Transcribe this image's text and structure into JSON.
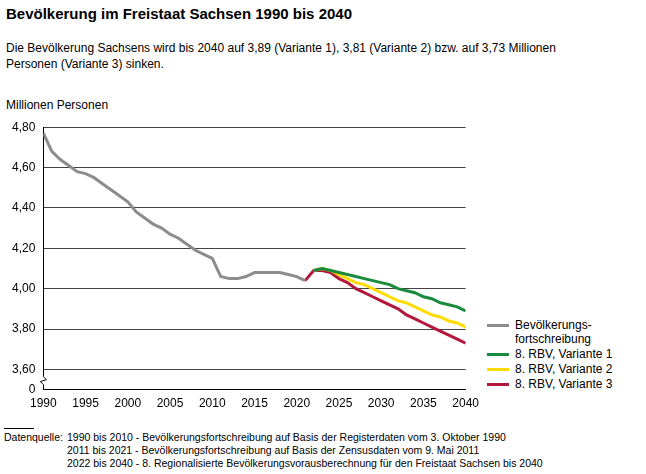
{
  "chart_data": {
    "type": "line",
    "title": "Bevölkerung im Freistaat Sachsen 1990 bis 2040",
    "subtitle": "Die Bevölkerung Sachsens wird bis 2040 auf 3,89 (Variante 1), 3,81 (Variante 2) bzw. auf  3,73 Millionen Personen (Variante 3) sinken.",
    "y_label": "Millionen Personen",
    "x": [
      1990,
      1991,
      1992,
      1993,
      1994,
      1995,
      1996,
      1997,
      1998,
      1999,
      2000,
      2001,
      2002,
      2003,
      2004,
      2005,
      2006,
      2007,
      2008,
      2009,
      2010,
      2011,
      2012,
      2013,
      2014,
      2015,
      2016,
      2017,
      2018,
      2019,
      2020,
      2021,
      2022,
      2023,
      2024,
      2025,
      2026,
      2027,
      2028,
      2029,
      2030,
      2031,
      2032,
      2033,
      2034,
      2035,
      2036,
      2037,
      2038,
      2039,
      2040
    ],
    "series": [
      {
        "name": "Bevölkerungs-fortschreibung",
        "color": "#8c8c8c",
        "values": [
          4.77,
          4.68,
          4.64,
          4.61,
          4.58,
          4.57,
          4.55,
          4.52,
          4.49,
          4.46,
          4.43,
          4.38,
          4.35,
          4.32,
          4.3,
          4.27,
          4.25,
          4.22,
          4.19,
          4.17,
          4.15,
          4.06,
          4.05,
          4.05,
          4.06,
          4.08,
          4.08,
          4.08,
          4.08,
          4.07,
          4.06,
          4.04,
          null,
          null,
          null,
          null,
          null,
          null,
          null,
          null,
          null,
          null,
          null,
          null,
          null,
          null,
          null,
          null,
          null,
          null,
          null
        ]
      },
      {
        "name": "8. RBV, Variante 1",
        "color": "#1a8a3c",
        "values": [
          null,
          null,
          null,
          null,
          null,
          null,
          null,
          null,
          null,
          null,
          null,
          null,
          null,
          null,
          null,
          null,
          null,
          null,
          null,
          null,
          null,
          null,
          null,
          null,
          null,
          null,
          null,
          null,
          null,
          null,
          null,
          null,
          4.09,
          4.1,
          4.09,
          4.08,
          4.07,
          4.06,
          4.05,
          4.04,
          4.03,
          4.02,
          4.0,
          3.99,
          3.98,
          3.96,
          3.95,
          3.93,
          3.92,
          3.91,
          3.89
        ]
      },
      {
        "name": "8. RBV, Variante 2",
        "color": "#ffdc00",
        "values": [
          null,
          null,
          null,
          null,
          null,
          null,
          null,
          null,
          null,
          null,
          null,
          null,
          null,
          null,
          null,
          null,
          null,
          null,
          null,
          null,
          null,
          null,
          null,
          null,
          null,
          null,
          null,
          null,
          null,
          null,
          null,
          null,
          4.09,
          4.1,
          4.09,
          4.07,
          4.05,
          4.03,
          4.02,
          4.0,
          3.98,
          3.96,
          3.94,
          3.93,
          3.91,
          3.89,
          3.87,
          3.86,
          3.84,
          3.83,
          3.81
        ]
      },
      {
        "name": "8. RBV, Variante 3",
        "color": "#b3173c",
        "values": [
          null,
          null,
          null,
          null,
          null,
          null,
          null,
          null,
          null,
          null,
          null,
          null,
          null,
          null,
          null,
          null,
          null,
          null,
          null,
          null,
          null,
          null,
          null,
          null,
          null,
          null,
          null,
          null,
          null,
          null,
          null,
          4.04,
          4.09,
          4.09,
          4.08,
          4.05,
          4.03,
          4.0,
          3.98,
          3.96,
          3.94,
          3.92,
          3.9,
          3.87,
          3.85,
          3.83,
          3.81,
          3.79,
          3.77,
          3.75,
          3.73
        ]
      }
    ],
    "xlim": [
      1990,
      2040
    ],
    "xticks": [
      1990,
      1995,
      2000,
      2005,
      2010,
      2015,
      2020,
      2025,
      2030,
      2035,
      2040
    ],
    "ylim": [
      3.5,
      4.8
    ],
    "yticks": [
      {
        "value": 3.6,
        "label": "3,60"
      },
      {
        "value": 3.8,
        "label": "3,80"
      },
      {
        "value": 4.0,
        "label": "4,00"
      },
      {
        "value": 4.2,
        "label": "4,20"
      },
      {
        "value": 4.4,
        "label": "4,40"
      },
      {
        "value": 4.6,
        "label": "4,60"
      },
      {
        "value": 4.8,
        "label": "4,80"
      }
    ],
    "grid": true,
    "legend": "right",
    "annotations": [
      {
        "text": "0"
      }
    ],
    "source": {
      "label": "Datenquelle:",
      "lines": [
        "1990 bis 2010 - Bevölkerungsfortschreibung auf Basis der  Registerdaten vom 3. Oktober 1990",
        "2011 bis 2021 - Bevölkerungsfortschreibung auf Basis der Zensusdaten vom 9. Mai 2011",
        "2022 bis 2040 - 8. Regionalisierte Bevölkerungsvorausberechnung für den Freistaat Sachsen bis 2040"
      ]
    }
  }
}
